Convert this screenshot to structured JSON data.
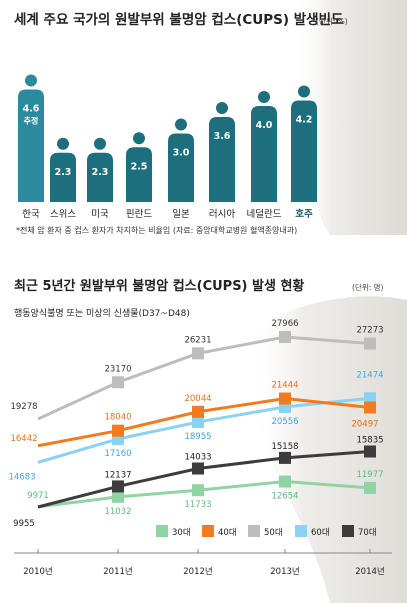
{
  "chart_data": [
    {
      "type": "bar",
      "title": "세계 주요 국가의 원발부위 불명암 컵스(CUPS) 발생빈도",
      "unit": "(단위: %)",
      "categories": [
        "한국",
        "스위스",
        "미국",
        "핀란드",
        "일본",
        "러시아",
        "네덜란드",
        "호주"
      ],
      "values": [
        4.6,
        2.3,
        2.3,
        2.5,
        3.0,
        3.6,
        4.0,
        4.2
      ],
      "value_labels": [
        "4.6",
        "2.3",
        "2.3",
        "2.5",
        "3.0",
        "3.6",
        "4.0",
        "4.2"
      ],
      "annotations": {
        "korea_sub": "추정"
      },
      "footnote": "*전체 암 환자 중 컵스 환자가 차지하는 비율임 (자료: 중앙대학교병원 혈액종양내과)",
      "colors": {
        "korea": "#2a8a9e",
        "others": "#1e6f7d"
      }
    },
    {
      "type": "line",
      "title": "최근 5년간 원발부위 불명암 컵스(CUPS) 발생 현황",
      "unit": "(단위: 명)",
      "subtitle": "행동양식불명 또는 미상의 신생물(D37~D48)",
      "x": [
        "2010년",
        "2011년",
        "2012년",
        "2013년",
        "2014년"
      ],
      "series": [
        {
          "name": "30대",
          "values": [
            9971,
            11032,
            11733,
            12654,
            11977
          ],
          "color": "#8fd4a4"
        },
        {
          "name": "40대",
          "values": [
            16442,
            18040,
            20044,
            21444,
            20497
          ],
          "color": "#f07c1e"
        },
        {
          "name": "50대",
          "values": [
            19278,
            23170,
            26231,
            27966,
            27273
          ],
          "color": "#bdbdbd"
        },
        {
          "name": "60대",
          "values": [
            14683,
            17160,
            18955,
            20556,
            21474
          ],
          "color": "#8ad1f3"
        },
        {
          "name": "70대",
          "values": [
            9955,
            12137,
            14033,
            15158,
            15835
          ],
          "color": "#3c3c3c"
        }
      ],
      "legend_position": "bottom-right"
    }
  ]
}
